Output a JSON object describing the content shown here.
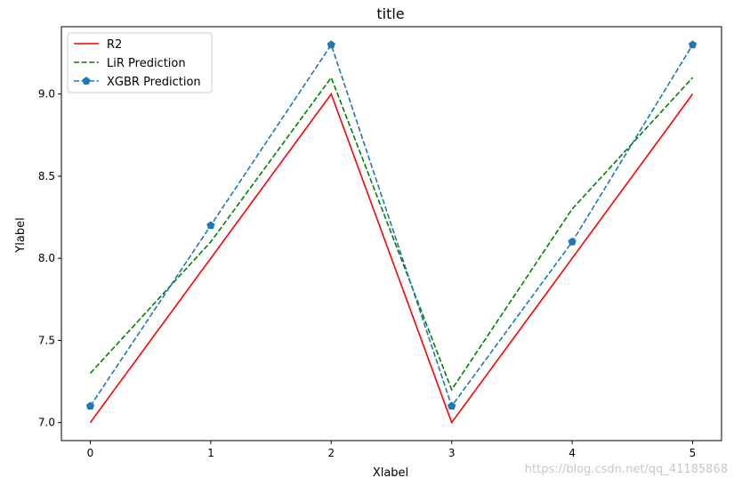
{
  "chart_data": {
    "type": "line",
    "title": "title",
    "xlabel": "Xlabel",
    "ylabel": "Ylabel",
    "x": [
      0,
      1,
      2,
      3,
      4,
      5
    ],
    "xticks": [
      "0",
      "1",
      "2",
      "3",
      "4",
      "5"
    ],
    "yticks": [
      "7.0",
      "7.5",
      "8.0",
      "8.5",
      "9.0"
    ],
    "xlim": [
      -0.24,
      5.24
    ],
    "ylim": [
      6.89,
      9.41
    ],
    "grid": false,
    "legend_position": "top-left",
    "series": [
      {
        "name": "R2",
        "values": [
          7.0,
          8.0,
          9.0,
          7.0,
          8.0,
          9.0
        ],
        "color": "#ff0000",
        "style": "solid",
        "marker": "none"
      },
      {
        "name": "LiR Prediction",
        "values": [
          7.3,
          8.1,
          9.1,
          7.2,
          8.3,
          9.1
        ],
        "color": "#008000",
        "style": "dashed",
        "marker": "none"
      },
      {
        "name": "XGBR Prediction",
        "values": [
          7.1,
          8.2,
          9.3,
          7.1,
          8.1,
          9.3
        ],
        "color": "#1f77b4",
        "style": "dashed",
        "marker": "pentagon"
      }
    ]
  },
  "watermark": "https://blog.csdn.net/qq_41185868"
}
